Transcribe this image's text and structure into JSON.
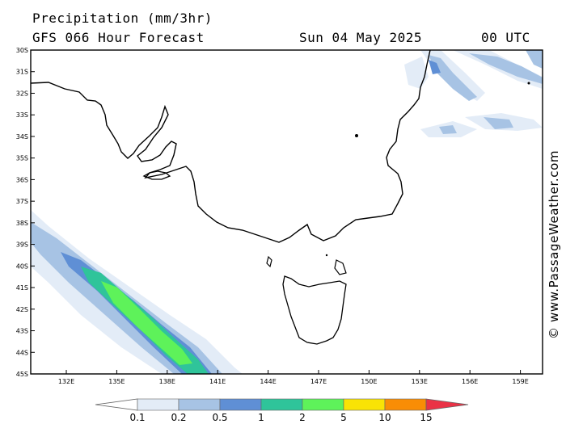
{
  "header": {
    "title": "Precipitation (mm/3hr)",
    "model": "GFS 066 Hour Forecast",
    "date": "Sun 04 May 2025",
    "time": "00 UTC"
  },
  "credit": "© www.PassageWeather.com",
  "axes": {
    "lat_labels": [
      "30S",
      "31S",
      "32S",
      "33S",
      "34S",
      "35S",
      "36S",
      "37S",
      "38S",
      "39S",
      "40S",
      "41S",
      "42S",
      "43S",
      "44S",
      "45S"
    ],
    "lon_labels": [
      "132E",
      "135E",
      "138E",
      "141E",
      "144E",
      "147E",
      "150E",
      "153E",
      "156E",
      "159E"
    ]
  },
  "legend": {
    "labels": [
      "0.1",
      "0.2",
      "0.5",
      "1",
      "2",
      "5",
      "10",
      "15"
    ],
    "colors": [
      "#ffffff",
      "#e3ecf7",
      "#a7c3e4",
      "#5f8fd5",
      "#2fc49a",
      "#5ef25a",
      "#f9e305",
      "#f98d05",
      "#ea3246"
    ]
  },
  "precip_colors": {
    "trace": "#e3ecf7",
    "light": "#a7c3e4",
    "moderate": "#5f8fd5",
    "medium": "#2fc49a",
    "heavy": "#5ef25a"
  }
}
